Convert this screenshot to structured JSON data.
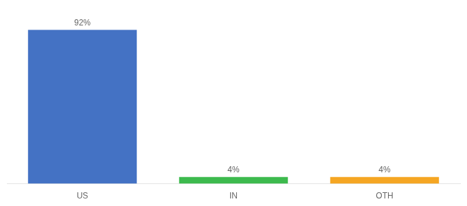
{
  "chart_data": {
    "type": "bar",
    "categories": [
      "US",
      "IN",
      "OTH"
    ],
    "values": [
      92,
      4,
      4
    ],
    "value_labels": [
      "92%",
      "4%",
      "4%"
    ],
    "colors": [
      "#4472c4",
      "#3dba4e",
      "#f5a623"
    ],
    "ylim": [
      0,
      100
    ],
    "grid": false,
    "data_labels": true,
    "tick_labels": "x"
  }
}
